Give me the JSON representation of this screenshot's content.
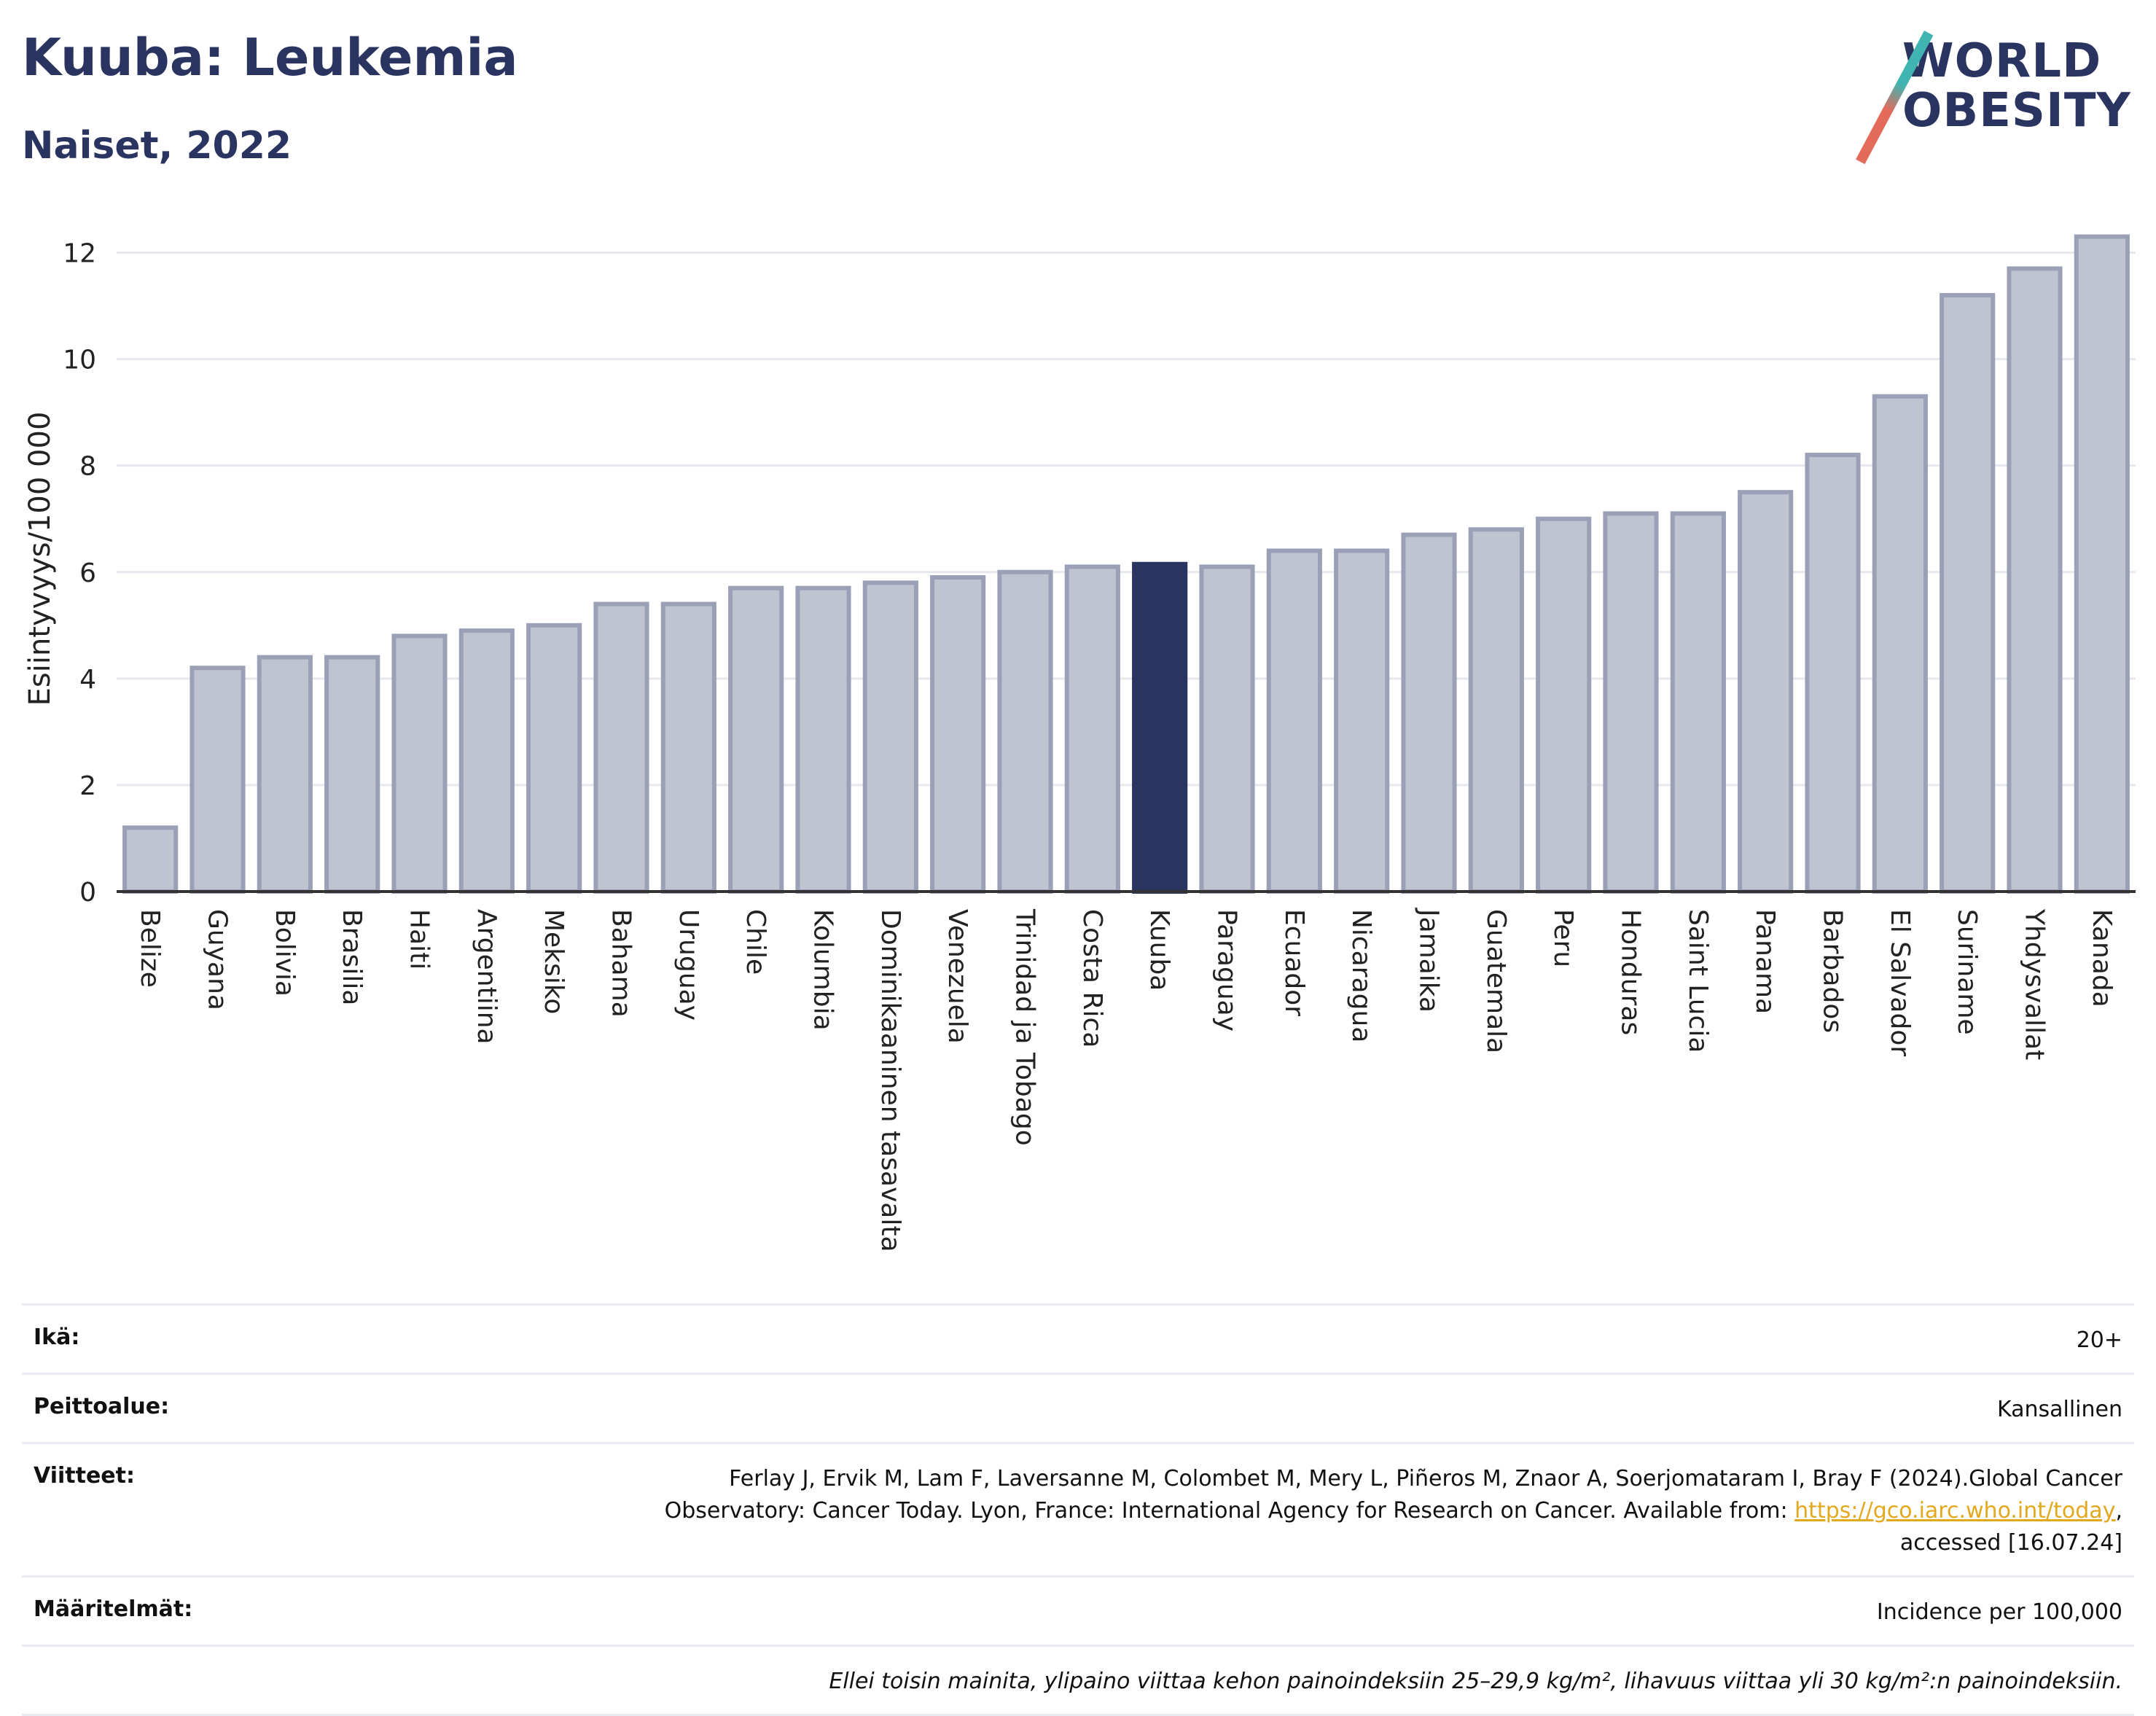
{
  "header": {
    "title": "Kuuba: Leukemia",
    "subtitle": "Naiset, 2022",
    "logo_top": "WORLD",
    "logo_bottom": "OBESITY"
  },
  "colors": {
    "highlight": "#2a3461",
    "bar": "#c0c4d1",
    "bar_border": "#9aa0b6",
    "axis": "#333333",
    "grid": "#e6e8ee"
  },
  "chart_data": {
    "type": "bar",
    "ylabel": "Esiintyvyys/100 000",
    "ylim": [
      0,
      12.5
    ],
    "yticks": [
      0,
      2,
      4,
      6,
      8,
      10,
      12
    ],
    "grid": true,
    "highlight_category": "Kuuba",
    "categories": [
      "Belize",
      "Guyana",
      "Bolivia",
      "Brasilia",
      "Haiti",
      "Argentiina",
      "Meksiko",
      "Bahama",
      "Uruguay",
      "Chile",
      "Kolumbia",
      "Dominikaaninen tasavalta",
      "Venezuela",
      "Trinidad ja Tobago",
      "Costa Rica",
      "Kuuba",
      "Paraguay",
      "Ecuador",
      "Nicaragua",
      "Jamaika",
      "Guatemala",
      "Peru",
      "Honduras",
      "Saint Lucia",
      "Panama",
      "Barbados",
      "El Salvador",
      "Suriname",
      "Yhdysvallat",
      "Kanada"
    ],
    "values": [
      1.2,
      4.2,
      4.4,
      4.4,
      4.8,
      4.9,
      5.0,
      5.4,
      5.4,
      5.7,
      5.7,
      5.8,
      5.9,
      6.0,
      6.1,
      6.15,
      6.1,
      6.4,
      6.4,
      6.7,
      6.8,
      7.0,
      7.1,
      7.1,
      7.5,
      8.2,
      9.3,
      11.2,
      11.7,
      12.3
    ]
  },
  "meta": {
    "age_label": "Ikä:",
    "age_value": "20+",
    "coverage_label": "Peittoalue:",
    "coverage_value": "Kansallinen",
    "refs_label": "Viitteet:",
    "refs_text_1": "Ferlay J, Ervik M, Lam F, Laversanne M, Colombet M, Mery L, Piñeros M, Znaor A, Soerjomataram I, Bray F (2024).Global Cancer",
    "refs_text_2": "Observatory: Cancer Today. Lyon, France: International Agency for Research on Cancer. Available from: ",
    "refs_link": "https://gco.iarc.who.int/today",
    "refs_text_3": ",",
    "refs_text_4": "accessed [16.07.24]",
    "definitions_label": "Määritelmät:",
    "definitions_value": "Incidence per 100,000",
    "note": "Ellei toisin mainita, ylipaino viittaa kehon painoindeksiin 25–29,9 kg/m², lihavuus viittaa yli 30 kg/m²:n painoindeksiin."
  }
}
